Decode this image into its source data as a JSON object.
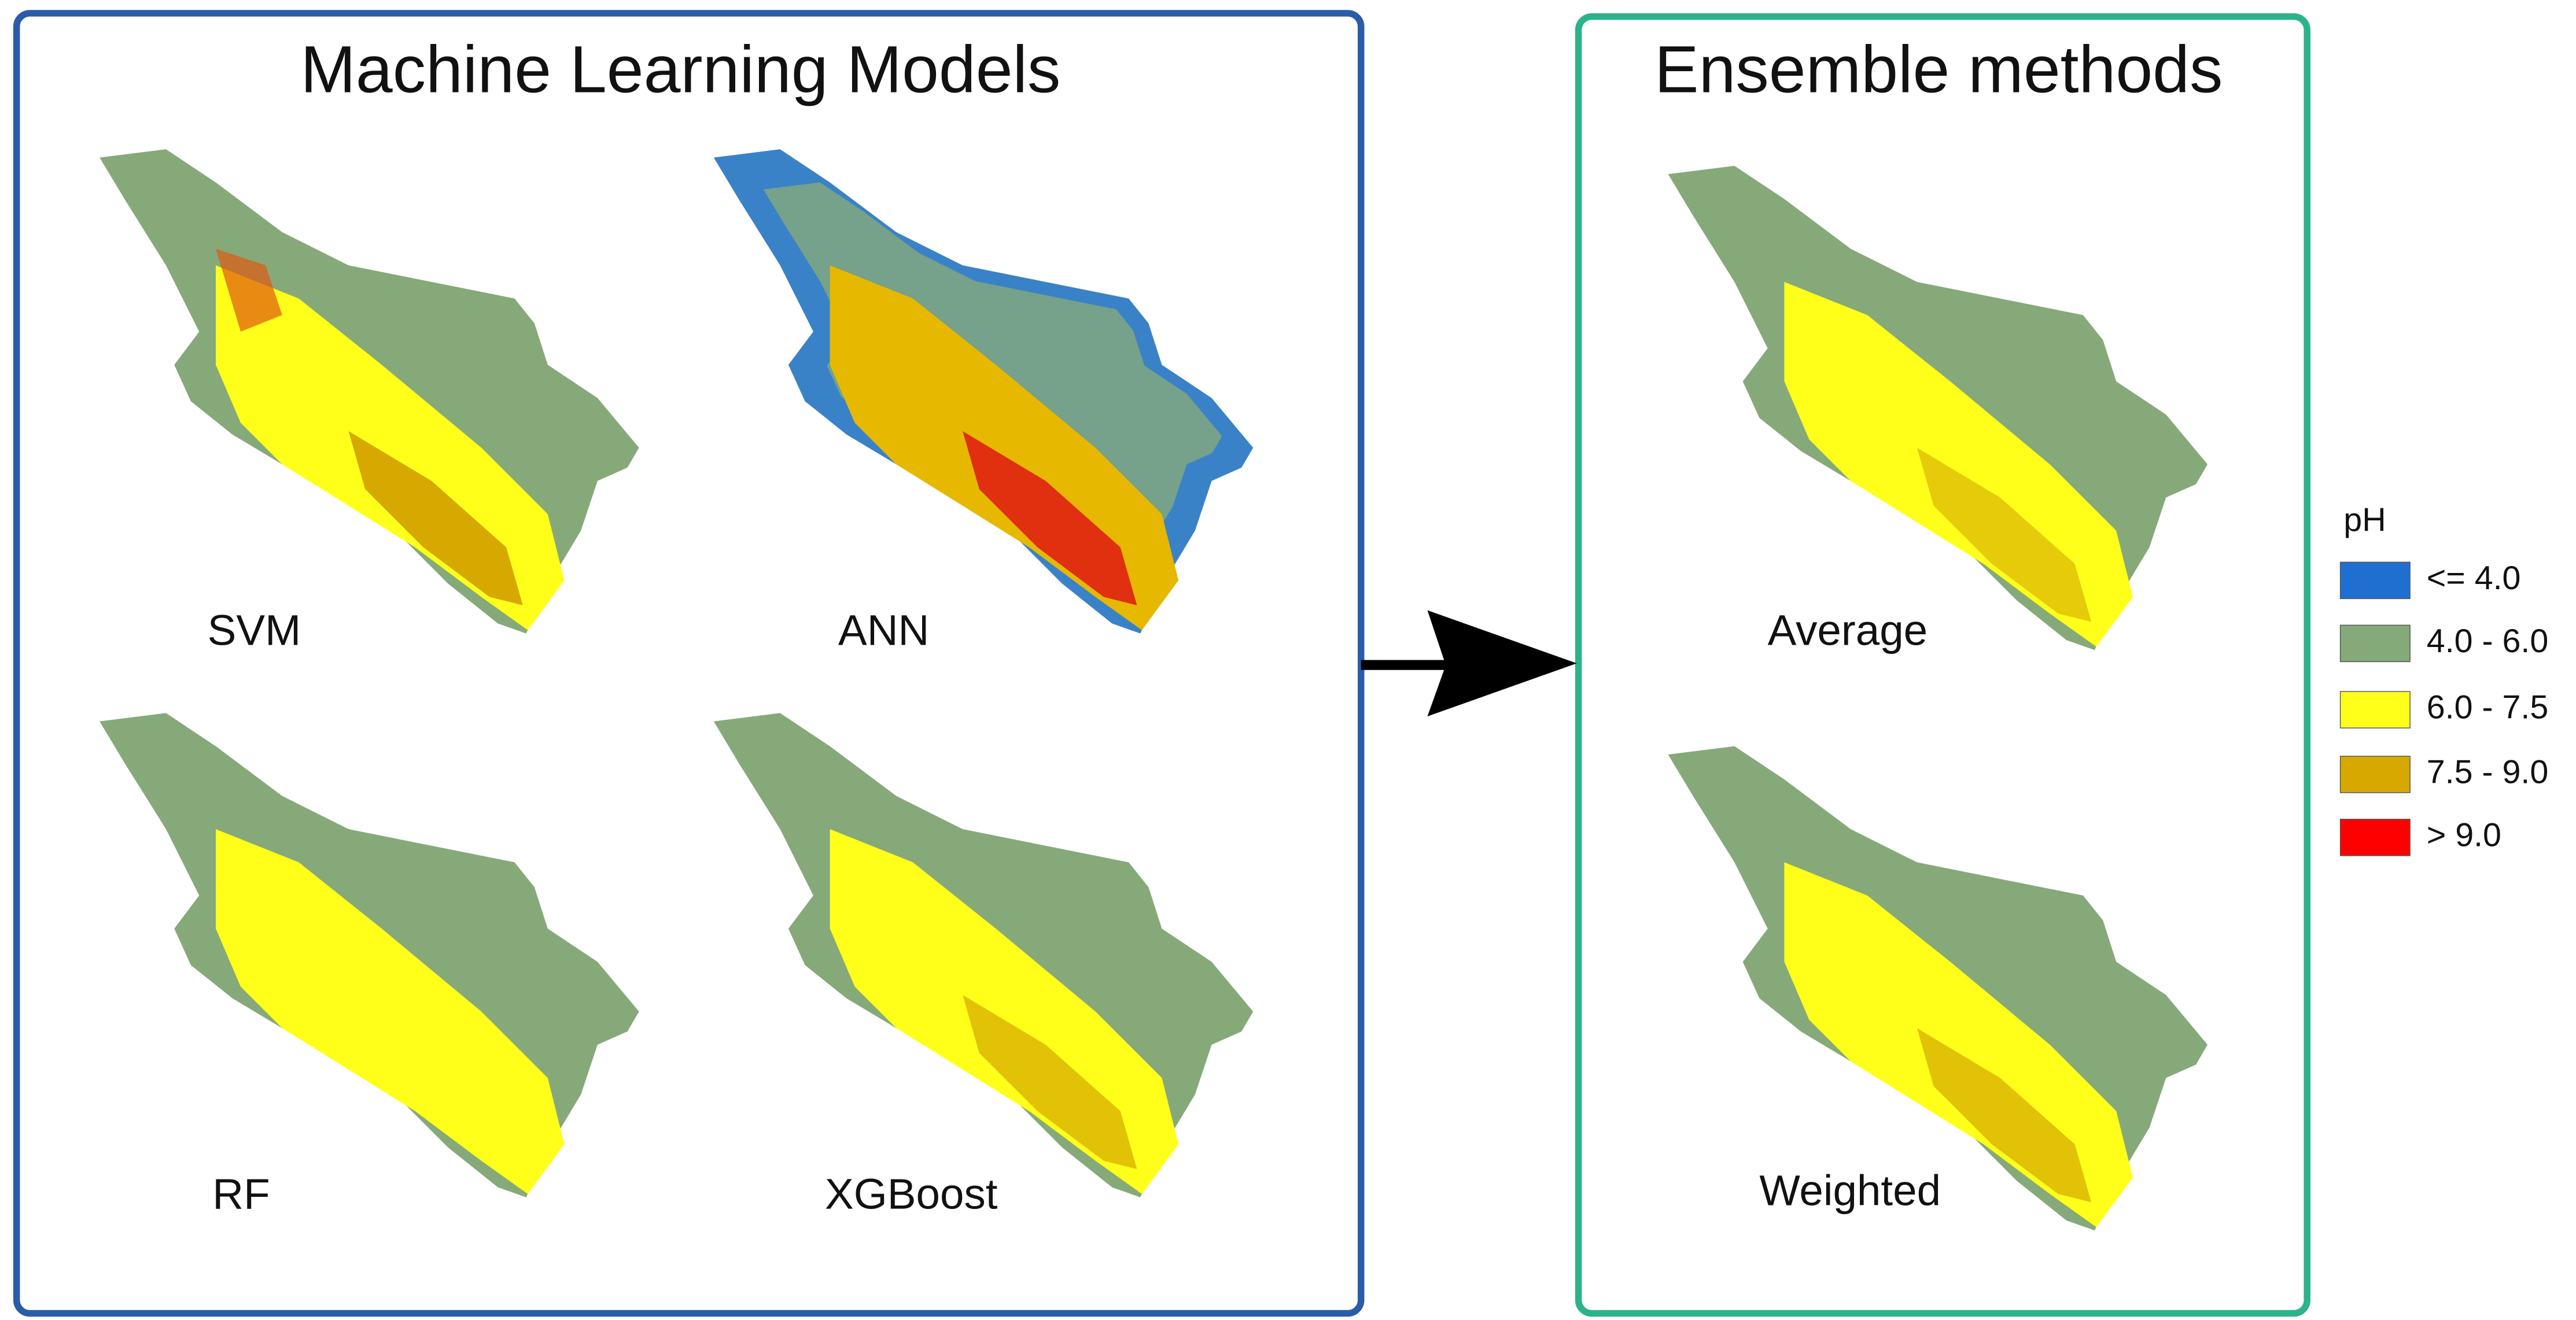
{
  "left_panel": {
    "title": "Machine Learning Models",
    "maps": [
      {
        "label": "SVM"
      },
      {
        "label": "ANN"
      },
      {
        "label": "RF"
      },
      {
        "label": "XGBoost"
      }
    ]
  },
  "right_panel": {
    "title": "Ensemble methods",
    "maps": [
      {
        "label": "Average"
      },
      {
        "label": "Weighted"
      }
    ]
  },
  "legend": {
    "title": "pH",
    "items": [
      {
        "label": "<= 4.0",
        "color": "#1f6fd1"
      },
      {
        "label": "4.0 - 6.0",
        "color": "#86a97a"
      },
      {
        "label": "6.0 - 7.5",
        "color": "#ffff1a"
      },
      {
        "label": "7.5 - 9.0",
        "color": "#d6a800"
      },
      {
        "label": "> 9.0",
        "color": "#ff0000"
      }
    ]
  }
}
